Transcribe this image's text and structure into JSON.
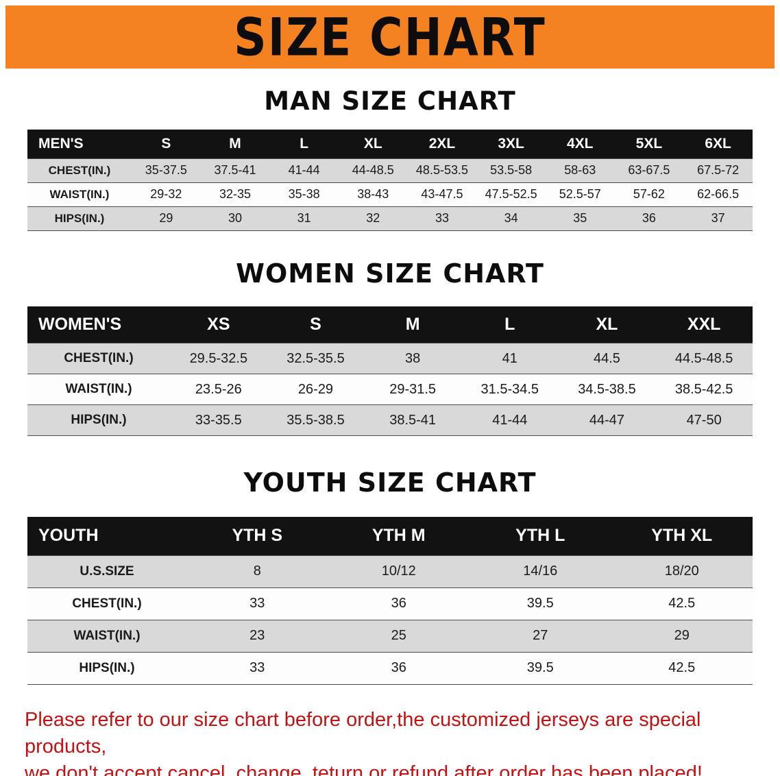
{
  "banner": {
    "title": "SIZE CHART"
  },
  "colors": {
    "banner_bg": "#f58220",
    "table_header_bg": "#121212",
    "row_stripe": "#d9d9d9",
    "disclaimer_text": "#c51111"
  },
  "men": {
    "heading": "MAN SIZE CHART",
    "header_label": "MEN'S",
    "sizes": [
      "S",
      "M",
      "L",
      "XL",
      "2XL",
      "3XL",
      "4XL",
      "5XL",
      "6XL"
    ],
    "rows": [
      {
        "label": "CHEST(IN.)",
        "values": [
          "35-37.5",
          "37.5-41",
          "41-44",
          "44-48.5",
          "48.5-53.5",
          "53.5-58",
          "58-63",
          "63-67.5",
          "67.5-72"
        ]
      },
      {
        "label": "WAIST(IN.)",
        "values": [
          "29-32",
          "32-35",
          "35-38",
          "38-43",
          "43-47.5",
          "47.5-52.5",
          "52.5-57",
          "57-62",
          "62-66.5"
        ]
      },
      {
        "label": "HIPS(IN.)",
        "values": [
          "29",
          "30",
          "31",
          "32",
          "33",
          "34",
          "35",
          "36",
          "37"
        ]
      }
    ]
  },
  "women": {
    "heading": "WOMEN SIZE CHART",
    "header_label": "WOMEN'S",
    "sizes": [
      "XS",
      "S",
      "M",
      "L",
      "XL",
      "XXL"
    ],
    "rows": [
      {
        "label": "CHEST(IN.)",
        "values": [
          "29.5-32.5",
          "32.5-35.5",
          "38",
          "41",
          "44.5",
          "44.5-48.5"
        ]
      },
      {
        "label": "WAIST(IN.)",
        "values": [
          "23.5-26",
          "26-29",
          "29-31.5",
          "31.5-34.5",
          "34.5-38.5",
          "38.5-42.5"
        ]
      },
      {
        "label": "HIPS(IN.)",
        "values": [
          "33-35.5",
          "35.5-38.5",
          "38.5-41",
          "41-44",
          "44-47",
          "47-50"
        ]
      }
    ]
  },
  "youth": {
    "heading": "YOUTH SIZE CHART",
    "header_label": "YOUTH",
    "sizes": [
      "YTH S",
      "YTH M",
      "YTH L",
      "YTH XL"
    ],
    "rows": [
      {
        "label": "U.S.SIZE",
        "values": [
          "8",
          "10/12",
          "14/16",
          "18/20"
        ]
      },
      {
        "label": "CHEST(IN.)",
        "values": [
          "33",
          "36",
          "39.5",
          "42.5"
        ]
      },
      {
        "label": "WAIST(IN.)",
        "values": [
          "23",
          "25",
          "27",
          "29"
        ]
      },
      {
        "label": "HIPS(IN.)",
        "values": [
          "33",
          "36",
          "39.5",
          "42.5"
        ]
      }
    ]
  },
  "footer": {
    "line1": "Please refer to our size chart before order,the customized jerseys are special products,",
    "line2": "we don't accept cancel, change, teturn or refund after order has been placed!"
  }
}
